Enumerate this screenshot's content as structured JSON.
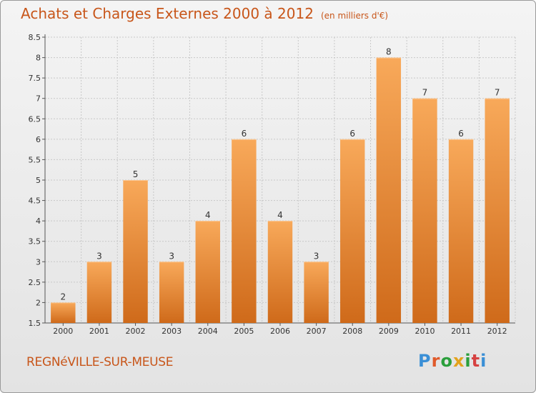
{
  "header": {
    "title": "Achats et Charges Externes 2000 à 2012",
    "unit": "(en milliers d'€)"
  },
  "footer": {
    "commune": "REGNéVILLE-SUR-MEUSE",
    "brand": "Proxiti"
  },
  "colors": {
    "title": "#c8561a",
    "bar_top": "#f8a95a",
    "bar_bottom": "#cf6a1a",
    "grid": "#c8c8c8",
    "brand_letters": [
      "#3a8fd6",
      "#e05a2b",
      "#2b9f3c",
      "#e3a21c",
      "#2b9f3c",
      "#d64242",
      "#3a8fd6"
    ]
  },
  "chart_data": {
    "type": "bar",
    "title": "Achats et Charges Externes 2000 à 2012",
    "subtitle": "(en milliers d'€)",
    "xlabel": "",
    "ylabel": "",
    "categories": [
      "2000",
      "2001",
      "2002",
      "2003",
      "2004",
      "2005",
      "2006",
      "2007",
      "2008",
      "2009",
      "2010",
      "2011",
      "2012"
    ],
    "values": [
      2,
      3,
      5,
      3,
      4,
      6,
      4,
      3,
      6,
      8,
      7,
      6,
      7
    ],
    "ylim": [
      1.5,
      8.5
    ],
    "yticks": [
      1.5,
      2,
      2.5,
      3,
      3.5,
      4,
      4.5,
      5,
      5.5,
      6,
      6.5,
      7,
      7.5,
      8,
      8.5
    ],
    "ytick_labels": [
      "1.5",
      "2",
      "2.5",
      "3",
      "3.5",
      "4",
      "4.5",
      "5",
      "5.5",
      "6",
      "6.5",
      "7",
      "7.5",
      "8",
      "8.5"
    ],
    "grid": true,
    "data_labels": true
  }
}
